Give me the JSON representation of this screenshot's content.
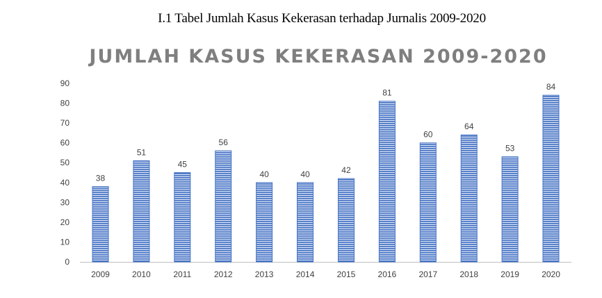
{
  "caption": "I.1 Tabel Jumlah Kasus Kekerasan terhadap Jurnalis 2009-2020",
  "chart_data": {
    "type": "bar",
    "title": "JUMLAH KASUS KEKERASAN 2009-2020",
    "xlabel": "",
    "ylabel": "",
    "categories": [
      "2009",
      "2010",
      "2011",
      "2012",
      "2013",
      "2014",
      "2015",
      "2016",
      "2017",
      "2018",
      "2019",
      "2020"
    ],
    "values": [
      38,
      51,
      45,
      56,
      40,
      40,
      42,
      81,
      60,
      64,
      53,
      84
    ],
    "ylim": [
      0,
      90
    ],
    "yticks": [
      0,
      10,
      20,
      30,
      40,
      50,
      60,
      70,
      80,
      90
    ],
    "data_labels": true,
    "legend": "none",
    "grid": false,
    "colors": {
      "bar": "#4472c4",
      "bar_stripe": "#dbe3f4",
      "axis": "#bfbfbf",
      "title": "#7f7f7f",
      "text": "#404040"
    }
  }
}
